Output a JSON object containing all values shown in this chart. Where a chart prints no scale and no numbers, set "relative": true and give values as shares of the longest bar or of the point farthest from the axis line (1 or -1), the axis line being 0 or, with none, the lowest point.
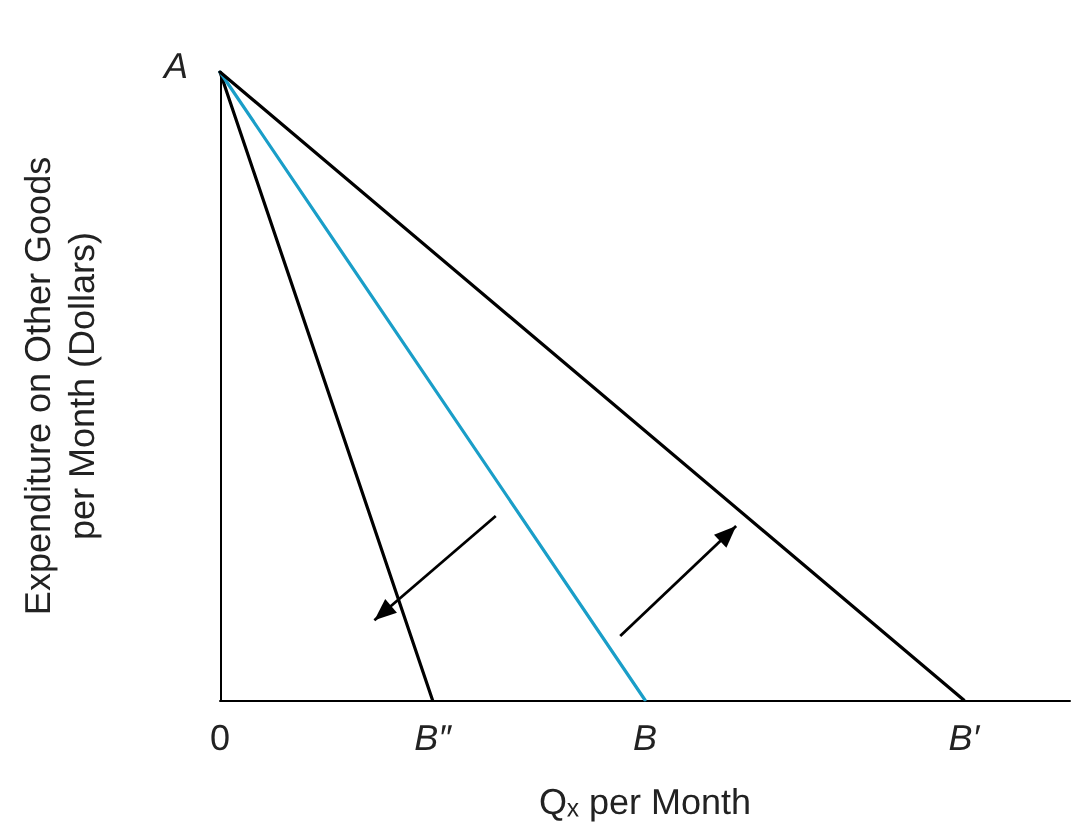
{
  "chart_data": {
    "type": "line",
    "relative": true,
    "xlabel": "Qₓ per Month",
    "ylabel": "Expenditure on Other Goods per Month (Dollars)",
    "categories": [
      "0",
      null,
      null,
      null,
      "B″",
      null,
      null,
      null,
      "B",
      null,
      null,
      null,
      null,
      null,
      "B′",
      null,
      null
    ],
    "series": [
      {
        "color": "#000000",
        "values": [
          1,
          null,
          null,
          null,
          0,
          null,
          null,
          null,
          null,
          null,
          null,
          null,
          null,
          null,
          null,
          null,
          null
        ]
      },
      {
        "color": "#1a9ec8",
        "values": [
          1,
          null,
          null,
          null,
          null,
          null,
          null,
          null,
          0,
          null,
          null,
          null,
          null,
          null,
          null,
          null,
          null
        ]
      },
      {
        "color": "#000000",
        "values": [
          1,
          null,
          null,
          null,
          null,
          null,
          null,
          null,
          null,
          null,
          null,
          null,
          null,
          null,
          0,
          null,
          null
        ]
      }
    ],
    "annotations": [
      {
        "text": "A",
        "x": "0",
        "y": 1
      }
    ],
    "grid": false,
    "marker": "none",
    "line_style": "solid"
  }
}
